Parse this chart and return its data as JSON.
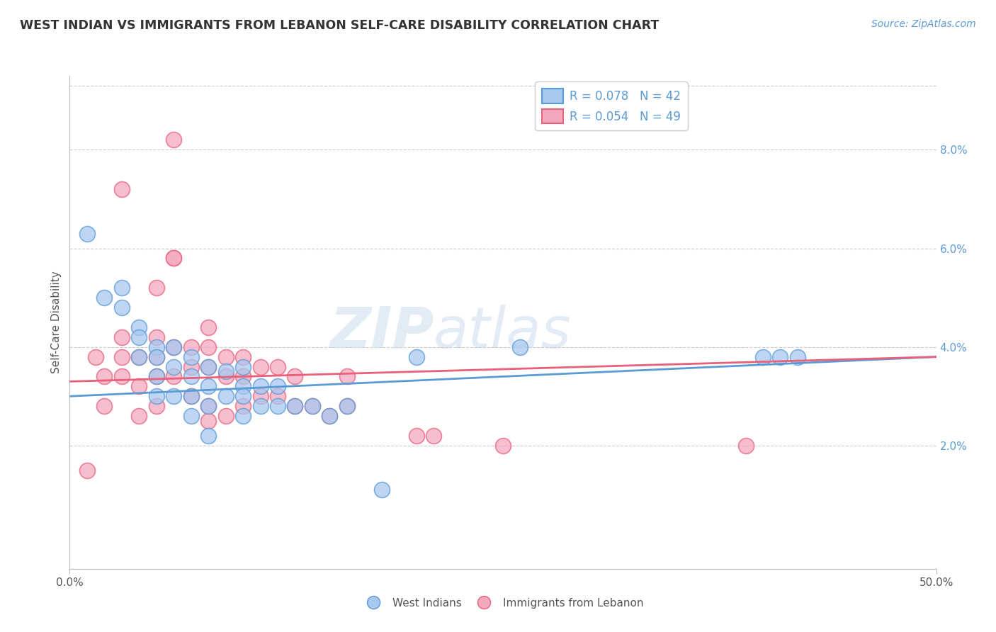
{
  "title": "WEST INDIAN VS IMMIGRANTS FROM LEBANON SELF-CARE DISABILITY CORRELATION CHART",
  "source": "Source: ZipAtlas.com",
  "ylabel": "Self-Care Disability",
  "right_yticks": [
    "2.0%",
    "4.0%",
    "6.0%",
    "8.0%"
  ],
  "right_ytick_vals": [
    0.02,
    0.04,
    0.06,
    0.08
  ],
  "xlim": [
    0.0,
    0.5
  ],
  "ylim": [
    -0.005,
    0.095
  ],
  "legend1_label": "R = 0.078   N = 42",
  "legend2_label": "R = 0.054   N = 49",
  "blue_color": "#A8C8F0",
  "pink_color": "#F4A8BE",
  "line_blue": "#5B9BD5",
  "line_pink": "#E8607A",
  "watermark_zip": "ZIP",
  "watermark_atlas": "atlas",
  "blue_scatter_x": [
    0.01,
    0.02,
    0.03,
    0.03,
    0.04,
    0.04,
    0.04,
    0.05,
    0.05,
    0.05,
    0.05,
    0.06,
    0.06,
    0.06,
    0.07,
    0.07,
    0.07,
    0.07,
    0.08,
    0.08,
    0.08,
    0.08,
    0.09,
    0.09,
    0.1,
    0.1,
    0.1,
    0.1,
    0.11,
    0.11,
    0.12,
    0.12,
    0.13,
    0.14,
    0.15,
    0.16,
    0.2,
    0.26,
    0.4,
    0.41,
    0.42,
    0.18
  ],
  "blue_scatter_y": [
    0.063,
    0.05,
    0.052,
    0.048,
    0.044,
    0.042,
    0.038,
    0.04,
    0.038,
    0.034,
    0.03,
    0.04,
    0.036,
    0.03,
    0.038,
    0.034,
    0.03,
    0.026,
    0.036,
    0.032,
    0.028,
    0.022,
    0.035,
    0.03,
    0.036,
    0.032,
    0.03,
    0.026,
    0.032,
    0.028,
    0.032,
    0.028,
    0.028,
    0.028,
    0.026,
    0.028,
    0.038,
    0.04,
    0.038,
    0.038,
    0.038,
    0.011
  ],
  "pink_scatter_x": [
    0.01,
    0.02,
    0.02,
    0.03,
    0.03,
    0.03,
    0.04,
    0.04,
    0.04,
    0.05,
    0.05,
    0.05,
    0.05,
    0.05,
    0.06,
    0.06,
    0.06,
    0.06,
    0.07,
    0.07,
    0.07,
    0.08,
    0.08,
    0.08,
    0.08,
    0.09,
    0.09,
    0.09,
    0.1,
    0.1,
    0.1,
    0.11,
    0.11,
    0.12,
    0.12,
    0.13,
    0.13,
    0.14,
    0.15,
    0.16,
    0.16,
    0.2,
    0.21,
    0.25,
    0.39,
    0.03,
    0.06,
    0.08,
    0.015
  ],
  "pink_scatter_y": [
    0.015,
    0.034,
    0.028,
    0.042,
    0.038,
    0.034,
    0.038,
    0.032,
    0.026,
    0.052,
    0.042,
    0.038,
    0.034,
    0.028,
    0.082,
    0.058,
    0.04,
    0.034,
    0.04,
    0.036,
    0.03,
    0.044,
    0.04,
    0.036,
    0.028,
    0.038,
    0.034,
    0.026,
    0.038,
    0.034,
    0.028,
    0.036,
    0.03,
    0.036,
    0.03,
    0.034,
    0.028,
    0.028,
    0.026,
    0.034,
    0.028,
    0.022,
    0.022,
    0.02,
    0.02,
    0.072,
    0.058,
    0.025,
    0.038
  ]
}
